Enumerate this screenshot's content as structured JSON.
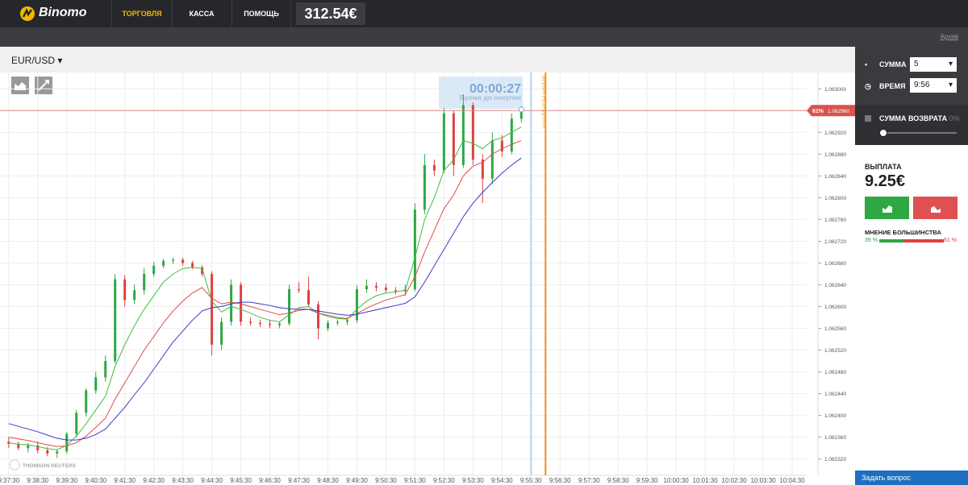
{
  "header": {
    "logo": "Binomo",
    "nav": [
      "ТОРГОВЛЯ",
      "КАССА",
      "ПОМОЩЬ"
    ],
    "balance": "312.54€"
  },
  "subbar": {
    "archive": "Архив"
  },
  "asset": "EUR/USD",
  "timer": {
    "time": "00:00:27",
    "label": "Время до покупки"
  },
  "source": "THOMSON REUTERS",
  "chart_data": {
    "type": "candlestick",
    "x": [
      "9:37:20",
      "9:37:40",
      "9:38:00",
      "9:38:20",
      "9:38:40",
      "9:39:00",
      "9:39:20",
      "9:39:40",
      "9:40:00",
      "9:40:20",
      "9:40:40",
      "9:41:00",
      "9:41:20",
      "9:41:40",
      "9:42:00",
      "9:42:20",
      "9:42:40",
      "9:43:00",
      "9:43:20",
      "9:43:40",
      "9:44:00",
      "9:44:20",
      "9:44:40",
      "9:45:00",
      "9:45:20",
      "9:45:40",
      "9:46:00",
      "9:46:20",
      "9:46:40",
      "9:47:00",
      "9:47:20",
      "9:47:40",
      "9:48:00",
      "9:48:20",
      "9:48:40",
      "9:49:00",
      "9:49:20",
      "9:49:40",
      "9:50:00",
      "9:50:20",
      "9:50:40",
      "9:51:00",
      "9:51:20",
      "9:51:40",
      "9:52:00",
      "9:52:20",
      "9:52:40",
      "9:53:00",
      "9:53:20",
      "9:53:40",
      "9:54:00",
      "9:54:20",
      "9:54:40",
      "9:55:00"
    ],
    "open": [
      1.062352,
      1.062348,
      1.06234,
      1.062345,
      1.062336,
      1.06233,
      1.062334,
      1.062366,
      1.062405,
      1.062446,
      1.06247,
      1.0625,
      1.06265,
      1.062612,
      1.06263,
      1.06266,
      1.062675,
      1.062684,
      1.062686,
      1.06268,
      1.062672,
      1.06266,
      1.06253,
      1.062572,
      1.06264,
      1.062572,
      1.06257,
      1.062568,
      1.062566,
      1.062569,
      1.062632,
      1.06263,
      1.062604,
      1.06256,
      1.06257,
      1.062572,
      1.062575,
      1.062632,
      1.062638,
      1.062635,
      1.06263,
      1.062628,
      1.062632,
      1.062778,
      1.06286,
      1.06285,
      1.062955,
      1.06286,
      1.06297,
      1.06287,
      1.062835,
      1.062905,
      1.062885,
      1.062945
    ],
    "high": [
      1.06236,
      1.062352,
      1.06235,
      1.062352,
      1.062342,
      1.062338,
      1.06237,
      1.06241,
      1.06245,
      1.06248,
      1.06251,
      1.06266,
      1.062658,
      1.06264,
      1.06267,
      1.062682,
      1.062688,
      1.06269,
      1.06269,
      1.062684,
      1.062676,
      1.062665,
      1.06258,
      1.06265,
      1.062645,
      1.06258,
      1.062576,
      1.062575,
      1.062572,
      1.06264,
      1.062645,
      1.062655,
      1.06261,
      1.062575,
      1.062576,
      1.06258,
      1.06264,
      1.06265,
      1.062645,
      1.062642,
      1.062636,
      1.06264,
      1.06279,
      1.06288,
      1.06287,
      1.062965,
      1.06296,
      1.06299,
      1.062975,
      1.06288,
      1.06292,
      1.062915,
      1.062955,
      1.062968
    ],
    "low": [
      1.06234,
      1.062336,
      1.062332,
      1.06233,
      1.062325,
      1.062322,
      1.06233,
      1.06236,
      1.062398,
      1.06244,
      1.062462,
      1.062495,
      1.0626,
      1.062605,
      1.062622,
      1.062655,
      1.06267,
      1.062678,
      1.062675,
      1.062668,
      1.062655,
      1.06251,
      1.06252,
      1.062565,
      1.062565,
      1.062565,
      1.062562,
      1.06256,
      1.06256,
      1.062565,
      1.062625,
      1.0626,
      1.06254,
      1.062555,
      1.062565,
      1.062566,
      1.06257,
      1.062625,
      1.062628,
      1.062625,
      1.062622,
      1.06262,
      1.062628,
      1.06277,
      1.06284,
      1.062845,
      1.06284,
      1.062855,
      1.06286,
      1.06279,
      1.062825,
      1.062875,
      1.06288,
      1.062938
    ],
    "close": [
      1.062348,
      1.06234,
      1.062345,
      1.062336,
      1.06233,
      1.062334,
      1.062366,
      1.062405,
      1.062446,
      1.06247,
      1.0625,
      1.06265,
      1.062612,
      1.06263,
      1.06266,
      1.062675,
      1.062684,
      1.062686,
      1.06268,
      1.062672,
      1.06266,
      1.06253,
      1.062572,
      1.06264,
      1.062572,
      1.06257,
      1.062568,
      1.062566,
      1.062569,
      1.062632,
      1.06263,
      1.062604,
      1.06256,
      1.06257,
      1.062572,
      1.062575,
      1.062632,
      1.062638,
      1.062635,
      1.06263,
      1.062628,
      1.062632,
      1.062778,
      1.06286,
      1.06285,
      1.062955,
      1.06286,
      1.06297,
      1.06287,
      1.062835,
      1.062905,
      1.062885,
      1.062945,
      1.062962
    ],
    "up_color": "#2ea843",
    "down_color": "#e04040",
    "lines": [
      {
        "color": "#3cbf3c",
        "values": [
          1.06235,
          1.062347,
          1.062346,
          1.062343,
          1.062339,
          1.062337,
          1.062345,
          1.062362,
          1.062385,
          1.06241,
          1.062435,
          1.06249,
          1.06253,
          1.062565,
          1.062595,
          1.06262,
          1.062645,
          1.06266,
          1.06267,
          1.062672,
          1.06267,
          1.06261,
          1.06259,
          1.0626,
          1.062595,
          1.062588,
          1.06258,
          1.062575,
          1.062572,
          1.062585,
          1.062598,
          1.0626,
          1.062588,
          1.062582,
          1.062578,
          1.062577,
          1.062595,
          1.06261,
          1.06262,
          1.062625,
          1.062627,
          1.06263,
          1.06269,
          1.06276,
          1.0628,
          1.06285,
          1.06287,
          1.062905,
          1.0629,
          1.06289,
          1.062905,
          1.06291,
          1.06292,
          1.06293
        ]
      },
      {
        "color": "#e04a4a",
        "values": [
          1.06236,
          1.062357,
          1.062354,
          1.06235,
          1.062346,
          1.062343,
          1.062344,
          1.06235,
          1.062362,
          1.062378,
          1.062395,
          1.06243,
          1.06246,
          1.06249,
          1.06252,
          1.062545,
          1.06257,
          1.062592,
          1.06261,
          1.062625,
          1.062635,
          1.062615,
          1.062605,
          1.062608,
          1.062605,
          1.0626,
          1.062595,
          1.06259,
          1.062585,
          1.062588,
          1.062593,
          1.062595,
          1.062588,
          1.062584,
          1.06258,
          1.062578,
          1.062587,
          1.062597,
          1.062605,
          1.062612,
          1.062617,
          1.062622,
          1.062655,
          1.0627,
          1.06274,
          1.06278,
          1.062805,
          1.06284,
          1.062858,
          1.062865,
          1.06288,
          1.06289,
          1.062898,
          1.062905
        ]
      },
      {
        "color": "#3a3ac8",
        "values": [
          1.062385,
          1.06238,
          1.062375,
          1.06237,
          1.062364,
          1.062358,
          1.062355,
          1.062355,
          1.062358,
          1.062365,
          1.062375,
          1.062395,
          1.062415,
          1.062438,
          1.06246,
          1.062485,
          1.06251,
          1.062535,
          1.062555,
          1.062575,
          1.062592,
          1.062598,
          1.0626,
          1.062605,
          1.062608,
          1.062608,
          1.062605,
          1.062602,
          1.062598,
          1.062596,
          1.062595,
          1.062595,
          1.062592,
          1.062589,
          1.062586,
          1.062584,
          1.062586,
          1.06259,
          1.062594,
          1.062598,
          1.062602,
          1.062606,
          1.062618,
          1.062645,
          1.062675,
          1.062705,
          1.062735,
          1.062765,
          1.06279,
          1.06281,
          1.062828,
          1.062845,
          1.06286,
          1.062873
        ]
      }
    ],
    "xlim": [
      "9:37:12",
      "10:05:00"
    ],
    "xticks": [
      "9:37:30",
      "9:38:30",
      "9:39:30",
      "9:40:30",
      "9:41:30",
      "9:42:30",
      "9:43:30",
      "9:44:30",
      "9:45:30",
      "9:46:30",
      "9:47:30",
      "9:48:30",
      "9:49:30",
      "9:50:30",
      "9:51:30",
      "9:52:30",
      "9:53:30",
      "9:54:30",
      "9:55:30",
      "9:56:30",
      "9:57:30",
      "9:58:30",
      "9:59:30",
      "10:00:30",
      "10:01:30",
      "10:02:30",
      "10:03:30",
      "10:04:30"
    ],
    "ylim": [
      1.06229,
      1.06303
    ],
    "yticks": [
      {
        "value": 1.063,
        "label": "1.063000"
      },
      {
        "value": 1.06296,
        "label": "1.062960"
      },
      {
        "value": 1.06292,
        "label": "1.062920"
      },
      {
        "value": 1.06288,
        "label": "1.062880"
      },
      {
        "value": 1.06284,
        "label": "1.062840"
      },
      {
        "value": 1.0628,
        "label": "1.062800"
      },
      {
        "value": 1.06276,
        "label": "1.062760"
      },
      {
        "value": 1.06272,
        "label": "1.062720"
      },
      {
        "value": 1.06268,
        "label": "1.062680"
      },
      {
        "value": 1.06264,
        "label": "1.062640"
      },
      {
        "value": 1.0626,
        "label": "1.062600"
      },
      {
        "value": 1.06256,
        "label": "1.062560"
      },
      {
        "value": 1.06252,
        "label": "1.062520"
      },
      {
        "value": 1.06248,
        "label": "1.062480"
      },
      {
        "value": 1.06244,
        "label": "1.062440"
      },
      {
        "value": 1.0624,
        "label": "1.062400"
      },
      {
        "value": 1.06236,
        "label": "1.062360"
      },
      {
        "value": 1.06232,
        "label": "1.062320"
      }
    ],
    "grid": true,
    "current_price": {
      "value": 1.06296,
      "label": "1.062960",
      "percent": "61%"
    },
    "purchase_deadline": "9:55:30",
    "expiry": {
      "x": "9:56:00",
      "label": "ВРЕМЯ РЕЗУЛЬТАТА"
    }
  },
  "panel": {
    "amount_label": "СУММА",
    "amount": "5",
    "time_label": "ВРЕМЯ",
    "time": "9:56",
    "refund_label": "СУММА ВОЗВРАТА",
    "refund": {
      "value": 0,
      "label": "0%"
    },
    "payout_label": "ВЫПЛАТА",
    "payout": "9.25€",
    "majority_label": "МНЕНИЕ БОЛЬШИНСТВА",
    "majority": {
      "up": {
        "value": 39,
        "label": "39 %"
      },
      "down": {
        "value": 61,
        "label": "61 %"
      }
    }
  },
  "help": "Задать вопрос"
}
